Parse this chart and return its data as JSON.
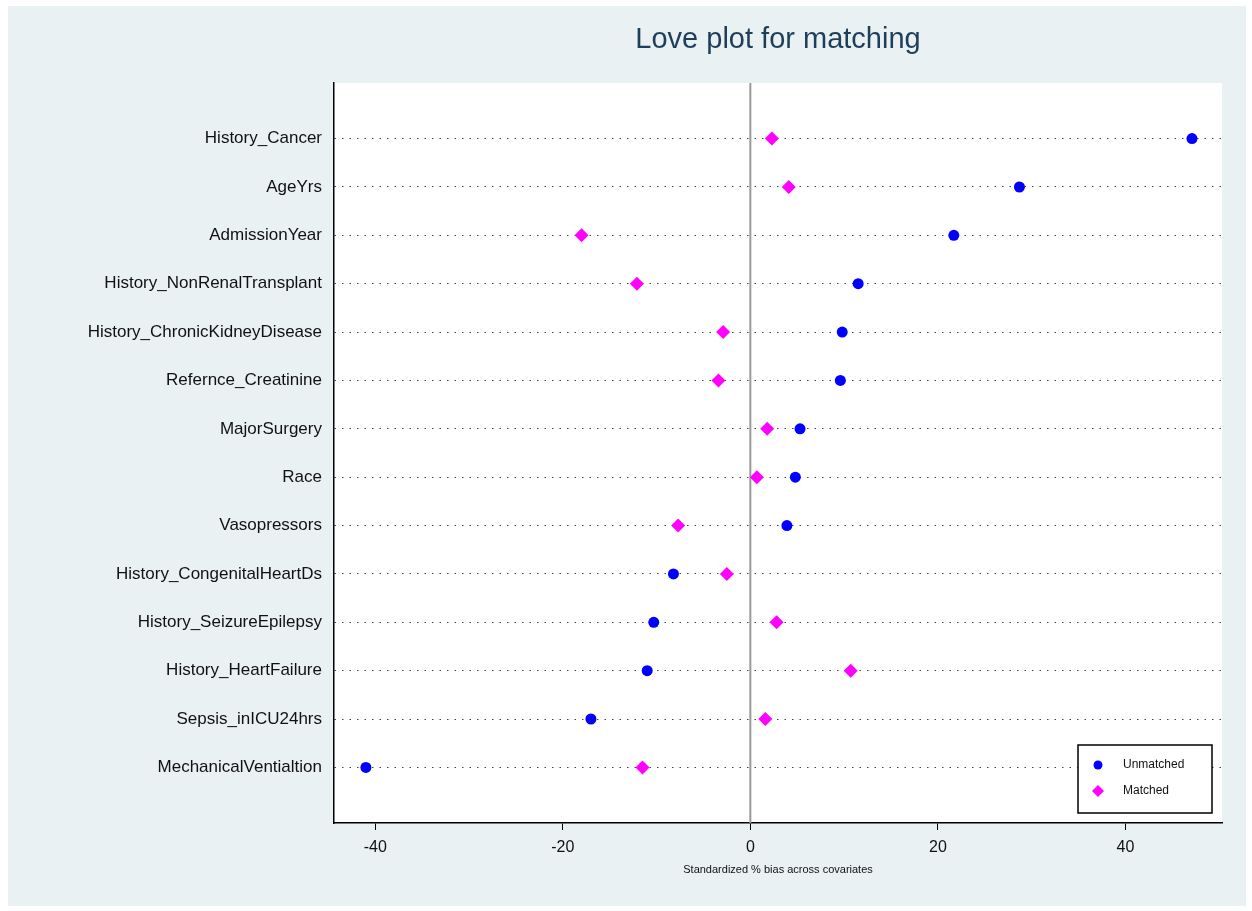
{
  "chart_data": {
    "type": "scatter",
    "title": "Love plot for matching",
    "xlabel": "Standardized % bias across covariates",
    "orientation": "horizontal",
    "categories": [
      "History_Cancer",
      "AgeYrs",
      "AdmissionYear",
      "History_NonRenalTransplant",
      "History_ChronicKidneyDisease",
      "Refernce_Creatinine",
      "MajorSurgery",
      "Race",
      "Vasopressors",
      "History_CongenitalHeartDs",
      "History_SeizureEpilepsy",
      "History_HeartFailure",
      "Sepsis_inICU24hrs",
      "MechanicalVentialtion"
    ],
    "series": [
      {
        "name": "Unmatched",
        "color": "#0000ff",
        "marker": "circle",
        "values": [
          47.1,
          28.7,
          21.7,
          11.5,
          9.8,
          9.6,
          5.3,
          4.8,
          3.9,
          -8.2,
          -10.3,
          -11.0,
          -17.0,
          -41.0
        ]
      },
      {
        "name": "Matched",
        "color": "#ff00ff",
        "marker": "diamond",
        "values": [
          2.3,
          4.1,
          -18.0,
          -12.1,
          -2.9,
          -3.4,
          1.8,
          0.7,
          -7.7,
          -2.5,
          2.8,
          10.7,
          1.6,
          -11.5
        ]
      }
    ],
    "xlim": [
      -44.4,
      50.3
    ],
    "xticks": [
      -40,
      -20,
      0,
      20,
      40
    ],
    "ref_lines": [
      {
        "axis": "x",
        "value": 0,
        "color": "#999999"
      }
    ],
    "grid": "y",
    "legend": "bottom right"
  }
}
